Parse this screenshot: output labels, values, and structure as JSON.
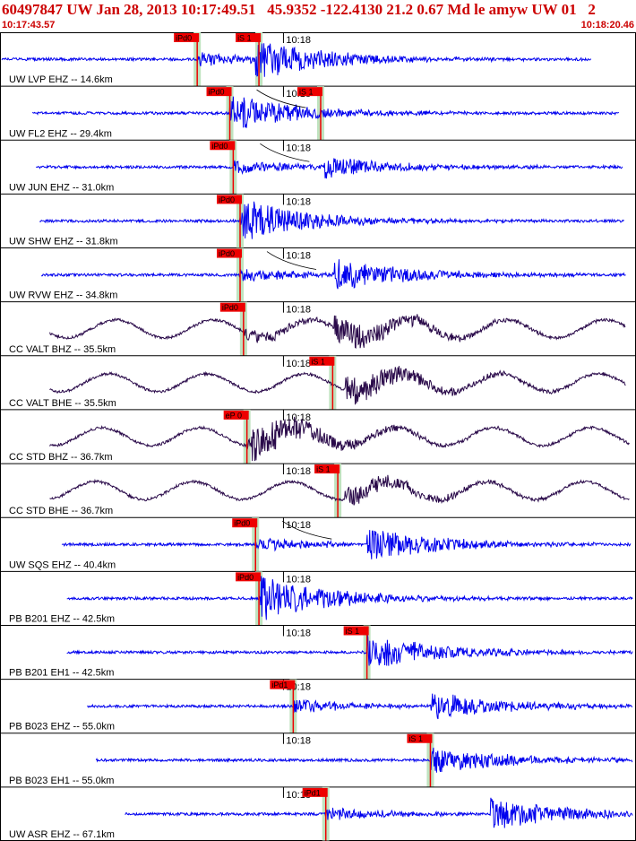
{
  "header": {
    "title": "60497847 UW Jan 28, 2013 10:17:49.51   45.9352 -122.4130 21.2 0.67 Md le amyw UW 01   2",
    "start_time": "10:17:43.57",
    "end_time": "10:18:20.46",
    "minute_label": "10:18"
  },
  "colors": {
    "trace_blue": "#0000ee",
    "trace_purple": "#2a0a4a",
    "pick_red": "#ee0000",
    "window_green": "#bfe3bf",
    "frame": "#000000"
  },
  "chart_data": {
    "type": "line",
    "title": "60497847 UW Jan 28, 2013 10:17:49.51   45.9352 -122.4130 21.2 0.67 Md le amyw UW 01   2",
    "x_range": [
      "10:17:43.57",
      "10:18:20.46"
    ],
    "x_unit": "s",
    "x_start_sec": 0,
    "x_end_sec": 36.89,
    "minute_mark_sec": 16.43,
    "minute_label": "10:18",
    "series": [
      {
        "name": "UW LVP EHZ -- 14.6km",
        "color": "#0000ee",
        "start": 0,
        "end": 34.4,
        "p_pick": {
          "label": "iPd0",
          "t": 11.4
        },
        "s_pick": {
          "label": "iS 1",
          "t": 15.0
        },
        "amp": 0.9,
        "onset": 14.8,
        "curve": false
      },
      {
        "name": "UW FL2 EHZ -- 29.4km",
        "color": "#0000ee",
        "start": 1.8,
        "end": 36.0,
        "p_pick": {
          "label": "iPd0",
          "t": 13.3
        },
        "s_pick": {
          "label": "iS 1",
          "t": 18.6
        },
        "amp": 0.65,
        "onset": 13.3,
        "curve": true
      },
      {
        "name": "UW JUN EHZ -- 31.0km",
        "color": "#0000ee",
        "start": 2.0,
        "end": 36.2,
        "p_pick": {
          "label": "iPd0",
          "t": 13.5
        },
        "s_pick": null,
        "amp": 0.5,
        "onset": 18.8,
        "curve": true
      },
      {
        "name": "UW SHW EHZ -- 31.8km",
        "color": "#0000ee",
        "start": 2.2,
        "end": 36.3,
        "p_pick": {
          "label": "iPd0",
          "t": 13.9
        },
        "s_pick": null,
        "amp": 0.75,
        "onset": 14.0,
        "curve": false
      },
      {
        "name": "UW RVW EHZ -- 34.8km",
        "color": "#0000ee",
        "start": 2.3,
        "end": 36.4,
        "p_pick": {
          "label": "iPd0",
          "t": 13.9
        },
        "s_pick": null,
        "amp": 0.75,
        "onset": 19.4,
        "curve": true
      },
      {
        "name": "CC VALT BHZ -- 35.5km",
        "color": "#2a0a4a",
        "start": 2.8,
        "end": 36.4,
        "p_pick": {
          "label": "iPd0",
          "t": 14.1
        },
        "s_pick": null,
        "amp": 0.8,
        "onset": 19.4,
        "curve": false
      },
      {
        "name": "CC VALT BHE -- 35.5km",
        "color": "#2a0a4a",
        "start": 2.8,
        "end": 36.4,
        "p_pick": null,
        "s_pick": {
          "label": "iS 1",
          "t": 19.3
        },
        "amp": 0.8,
        "onset": 20.0,
        "curve": false
      },
      {
        "name": "CC STD BHZ -- 36.7km",
        "color": "#2a0a4a",
        "start": 2.8,
        "end": 36.6,
        "p_pick": {
          "label": "eP 0",
          "t": 14.3
        },
        "s_pick": null,
        "amp": 0.65,
        "onset": 14.5,
        "curve": false
      },
      {
        "name": "CC STD BHE -- 36.7km",
        "color": "#2a0a4a",
        "start": 2.8,
        "end": 36.6,
        "p_pick": null,
        "s_pick": {
          "label": "iS 1",
          "t": 19.6
        },
        "amp": 0.55,
        "onset": 20.0,
        "curve": false
      },
      {
        "name": "UW SQS EHZ -- 40.4km",
        "color": "#0000ee",
        "start": 3.5,
        "end": 36.7,
        "p_pick": {
          "label": "iPd0",
          "t": 14.8
        },
        "s_pick": null,
        "amp": 0.8,
        "onset": 21.3,
        "curve": true
      },
      {
        "name": "PB B201 EHZ -- 42.5km",
        "color": "#0000ee",
        "start": 3.8,
        "end": 36.8,
        "p_pick": {
          "label": "iPd0",
          "t": 15.0
        },
        "s_pick": null,
        "amp": 0.85,
        "onset": 15.1,
        "curve": false
      },
      {
        "name": "PB B201 EH1 -- 42.5km",
        "color": "#0000ee",
        "start": 3.8,
        "end": 36.8,
        "p_pick": null,
        "s_pick": {
          "label": "iS 1",
          "t": 21.3
        },
        "amp": 0.9,
        "onset": 21.3,
        "curve": false
      },
      {
        "name": "PB B023 EHZ -- 55.0km",
        "color": "#0000ee",
        "start": 5.0,
        "end": 36.8,
        "p_pick": {
          "label": "iPd1",
          "t": 17.0
        },
        "s_pick": null,
        "amp": 0.7,
        "onset": 25.0,
        "curve": false
      },
      {
        "name": "PB B023 EH1 -- 55.0km",
        "color": "#0000ee",
        "start": 5.5,
        "end": 36.8,
        "p_pick": null,
        "s_pick": {
          "label": "iS 1",
          "t": 25.0
        },
        "amp": 0.7,
        "onset": 25.0,
        "curve": false
      },
      {
        "name": "UW ASR EHZ -- 67.1km",
        "color": "#0000ee",
        "start": 7.2,
        "end": 36.8,
        "p_pick": {
          "label": "iPd1",
          "t": 18.9
        },
        "s_pick": null,
        "amp": 0.8,
        "onset": 28.5,
        "curve": false
      }
    ]
  }
}
